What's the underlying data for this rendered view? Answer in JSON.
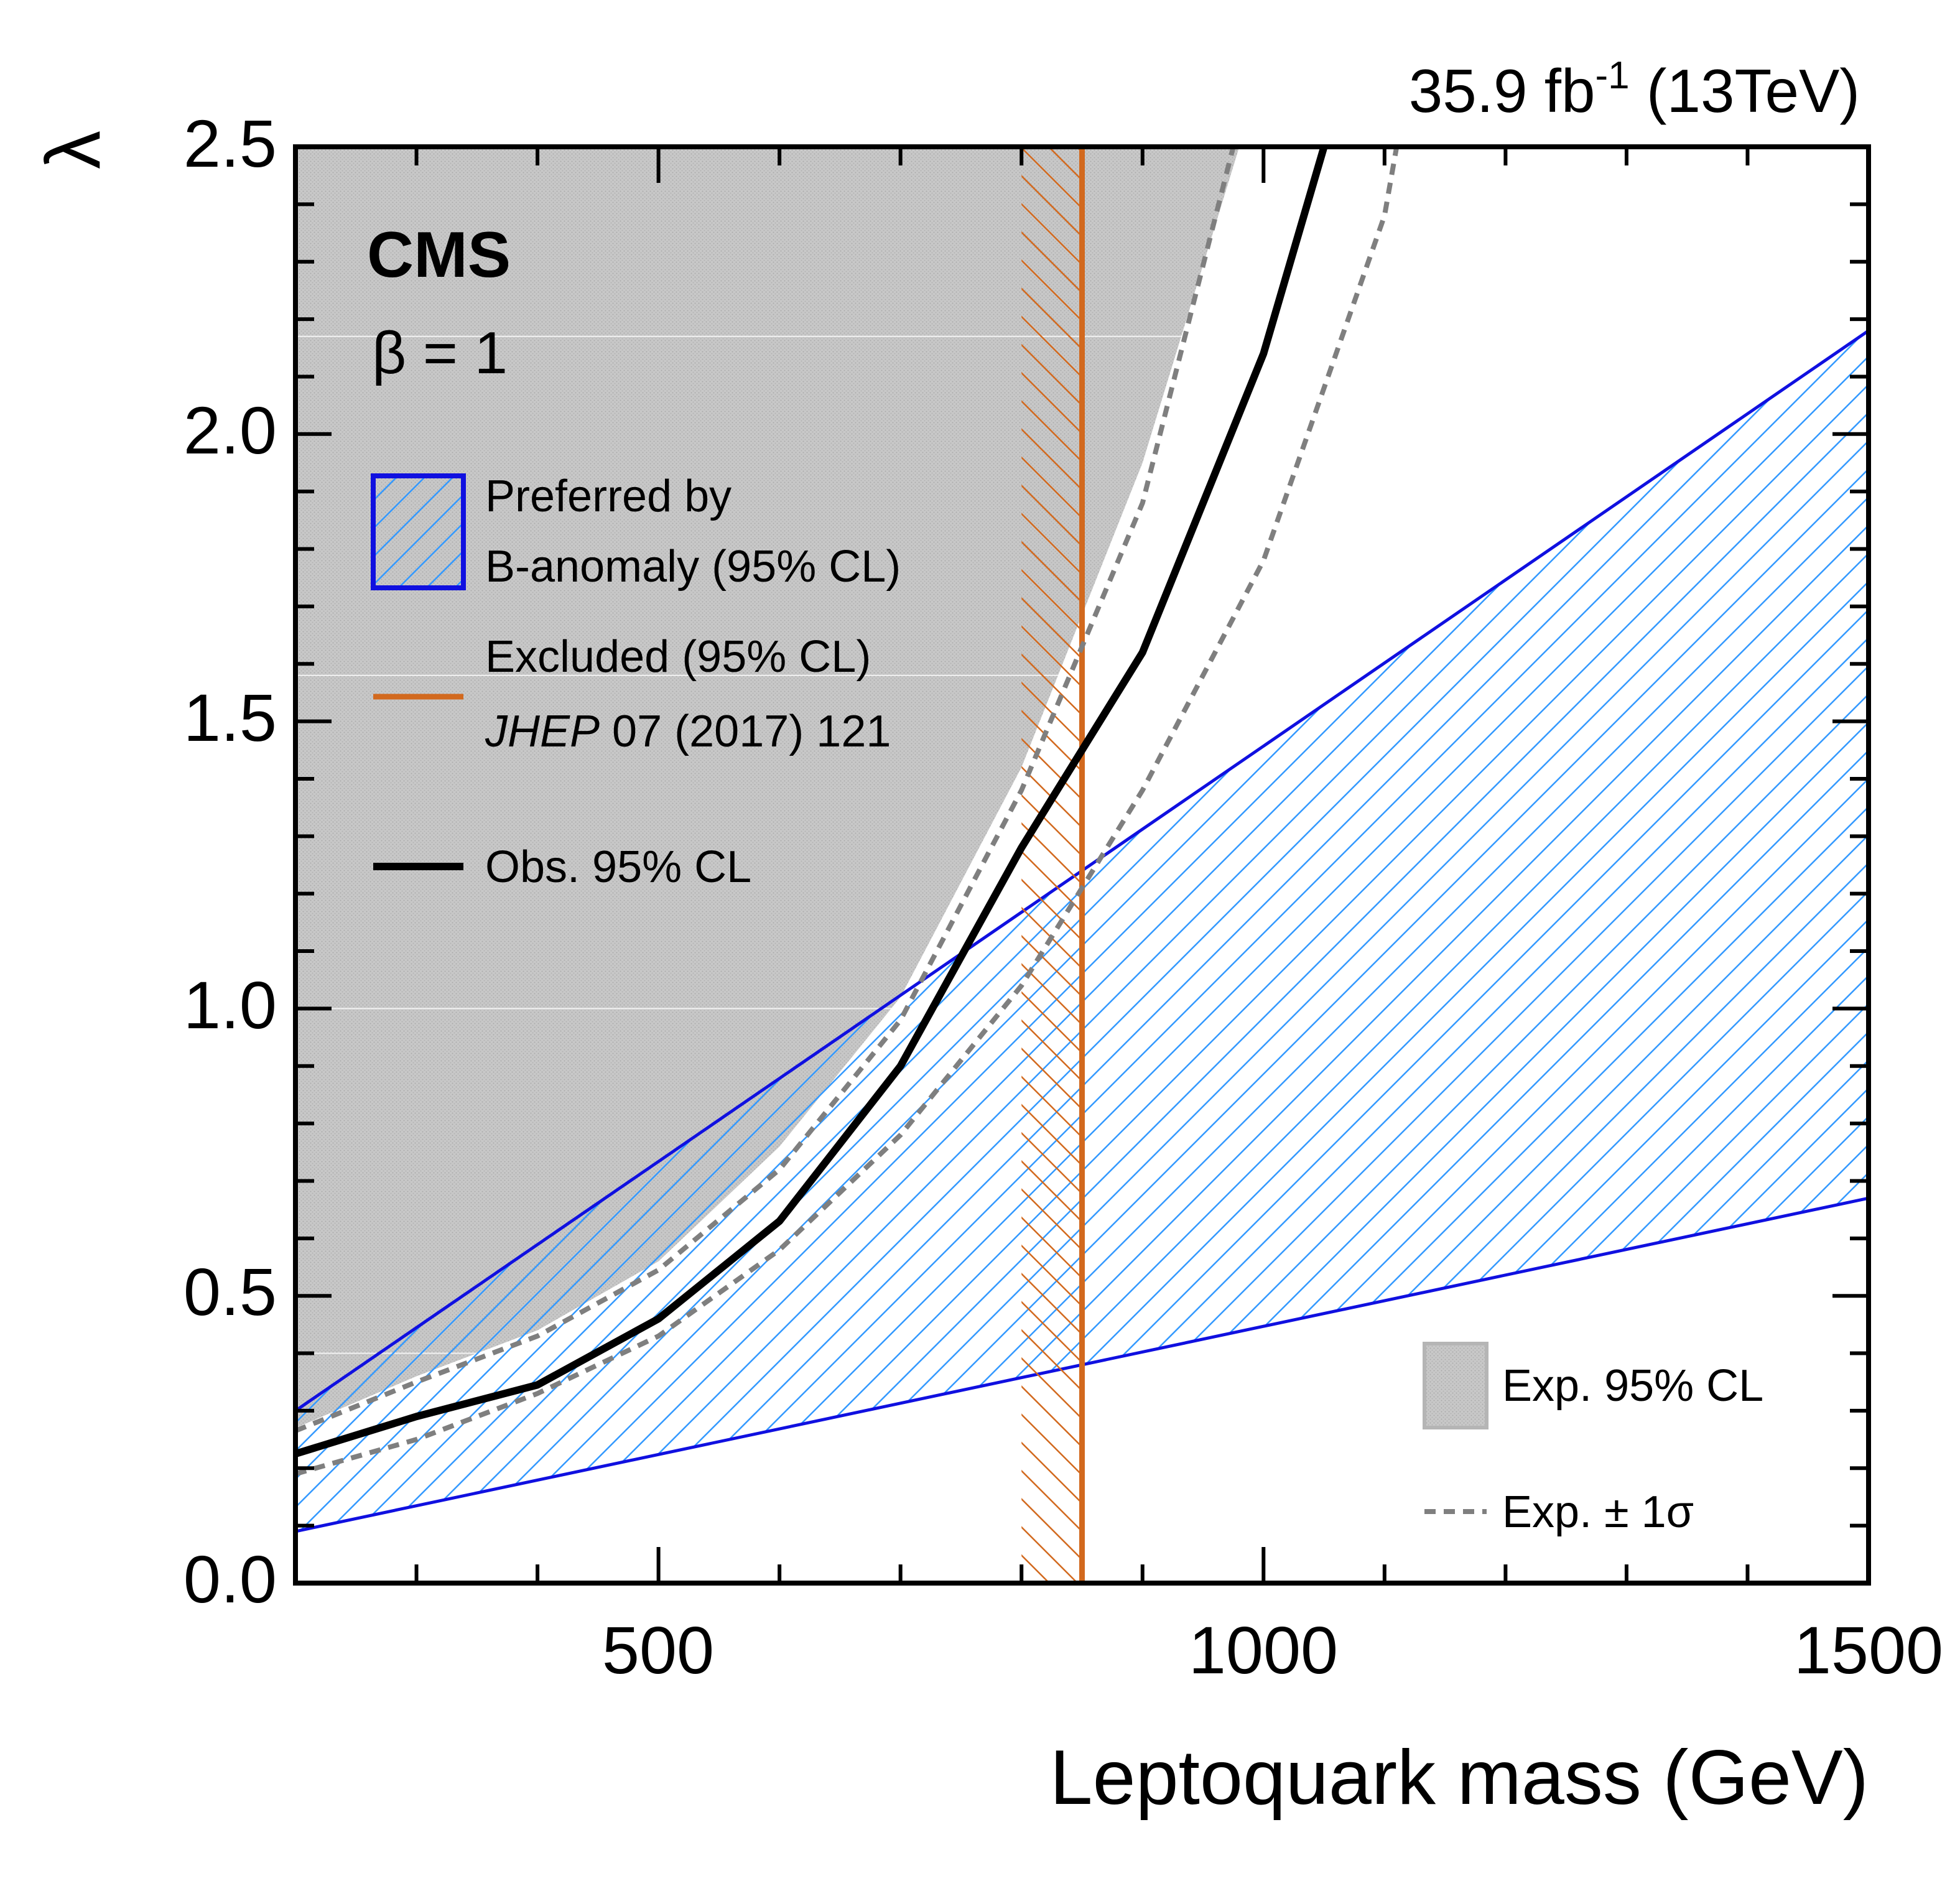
{
  "header": {
    "lumi": "35.9 fb",
    "lumi_sup": "-1",
    "energy": " (13TeV)"
  },
  "labels": {
    "experiment": "CMS",
    "beta": "β = 1"
  },
  "legend": {
    "preferred_line1": "Preferred by",
    "preferred_line2": "B-anomaly (95% CL)",
    "excluded_line1": "Excluded (95% CL)",
    "excluded_journal": "JHEP",
    "excluded_ref": " 07 (2017) 121",
    "observed": "Obs. 95% CL",
    "expected": "Exp. 95% CL",
    "expected_pm": "Exp. ± 1σ"
  },
  "chart_data": {
    "type": "line",
    "title": "",
    "xlabel": "Leptoquark mass (GeV)",
    "ylabel": "λ",
    "xlim": [
      200,
      1500
    ],
    "ylim": [
      0,
      2.5
    ],
    "xticks": [
      500,
      1000,
      1500
    ],
    "xtick_labels": [
      "500",
      "1000",
      "1500"
    ],
    "yticks": [
      0,
      0.5,
      1.0,
      1.5,
      2.0,
      2.5
    ],
    "ytick_labels": [
      "0.0",
      "0.5",
      "1.0",
      "1.5",
      "2.0",
      "2.5"
    ],
    "colors": {
      "observed": "#000000",
      "expected": "#7f7f7f",
      "excluded_region": "#c0c0c0",
      "b_anomaly_hatch": "#3399ff",
      "b_anomaly_edge": "#1010e0",
      "previous_limit": "#d2691e"
    },
    "series": [
      {
        "name": "Obs. 95% CL",
        "x": [
          200,
          300,
          400,
          500,
          600,
          700,
          800,
          900,
          1000,
          1050
        ],
        "y": [
          0.225,
          0.29,
          0.345,
          0.46,
          0.63,
          0.9,
          1.28,
          1.62,
          2.14,
          2.5
        ]
      },
      {
        "name": "Exp. 95% CL",
        "x": [
          200,
          300,
          400,
          500,
          600,
          700,
          800,
          900,
          980
        ],
        "y": [
          0.27,
          0.36,
          0.44,
          0.56,
          0.76,
          1.02,
          1.42,
          1.95,
          2.5
        ]
      },
      {
        "name": "Exp. +1σ",
        "x": [
          200,
          300,
          400,
          500,
          600,
          700,
          800,
          900,
          975
        ],
        "y": [
          0.265,
          0.35,
          0.43,
          0.545,
          0.72,
          0.98,
          1.38,
          1.88,
          2.5
        ]
      },
      {
        "name": "Exp. -1σ",
        "x": [
          200,
          300,
          400,
          500,
          600,
          700,
          800,
          900,
          1000,
          1100,
          1110
        ],
        "y": [
          0.19,
          0.25,
          0.33,
          0.43,
          0.58,
          0.78,
          1.04,
          1.38,
          1.78,
          2.38,
          2.5
        ]
      }
    ],
    "regions": [
      {
        "name": "Preferred by B-anomaly (95% CL)",
        "x": [
          200,
          1500
        ],
        "lower": [
          0.09,
          0.67
        ],
        "upper": [
          0.3,
          2.18
        ]
      },
      {
        "name": "Excluded (95% CL) JHEP 07 (2017) 121",
        "limit_x": 850,
        "hatch_from_x": 800
      }
    ]
  }
}
